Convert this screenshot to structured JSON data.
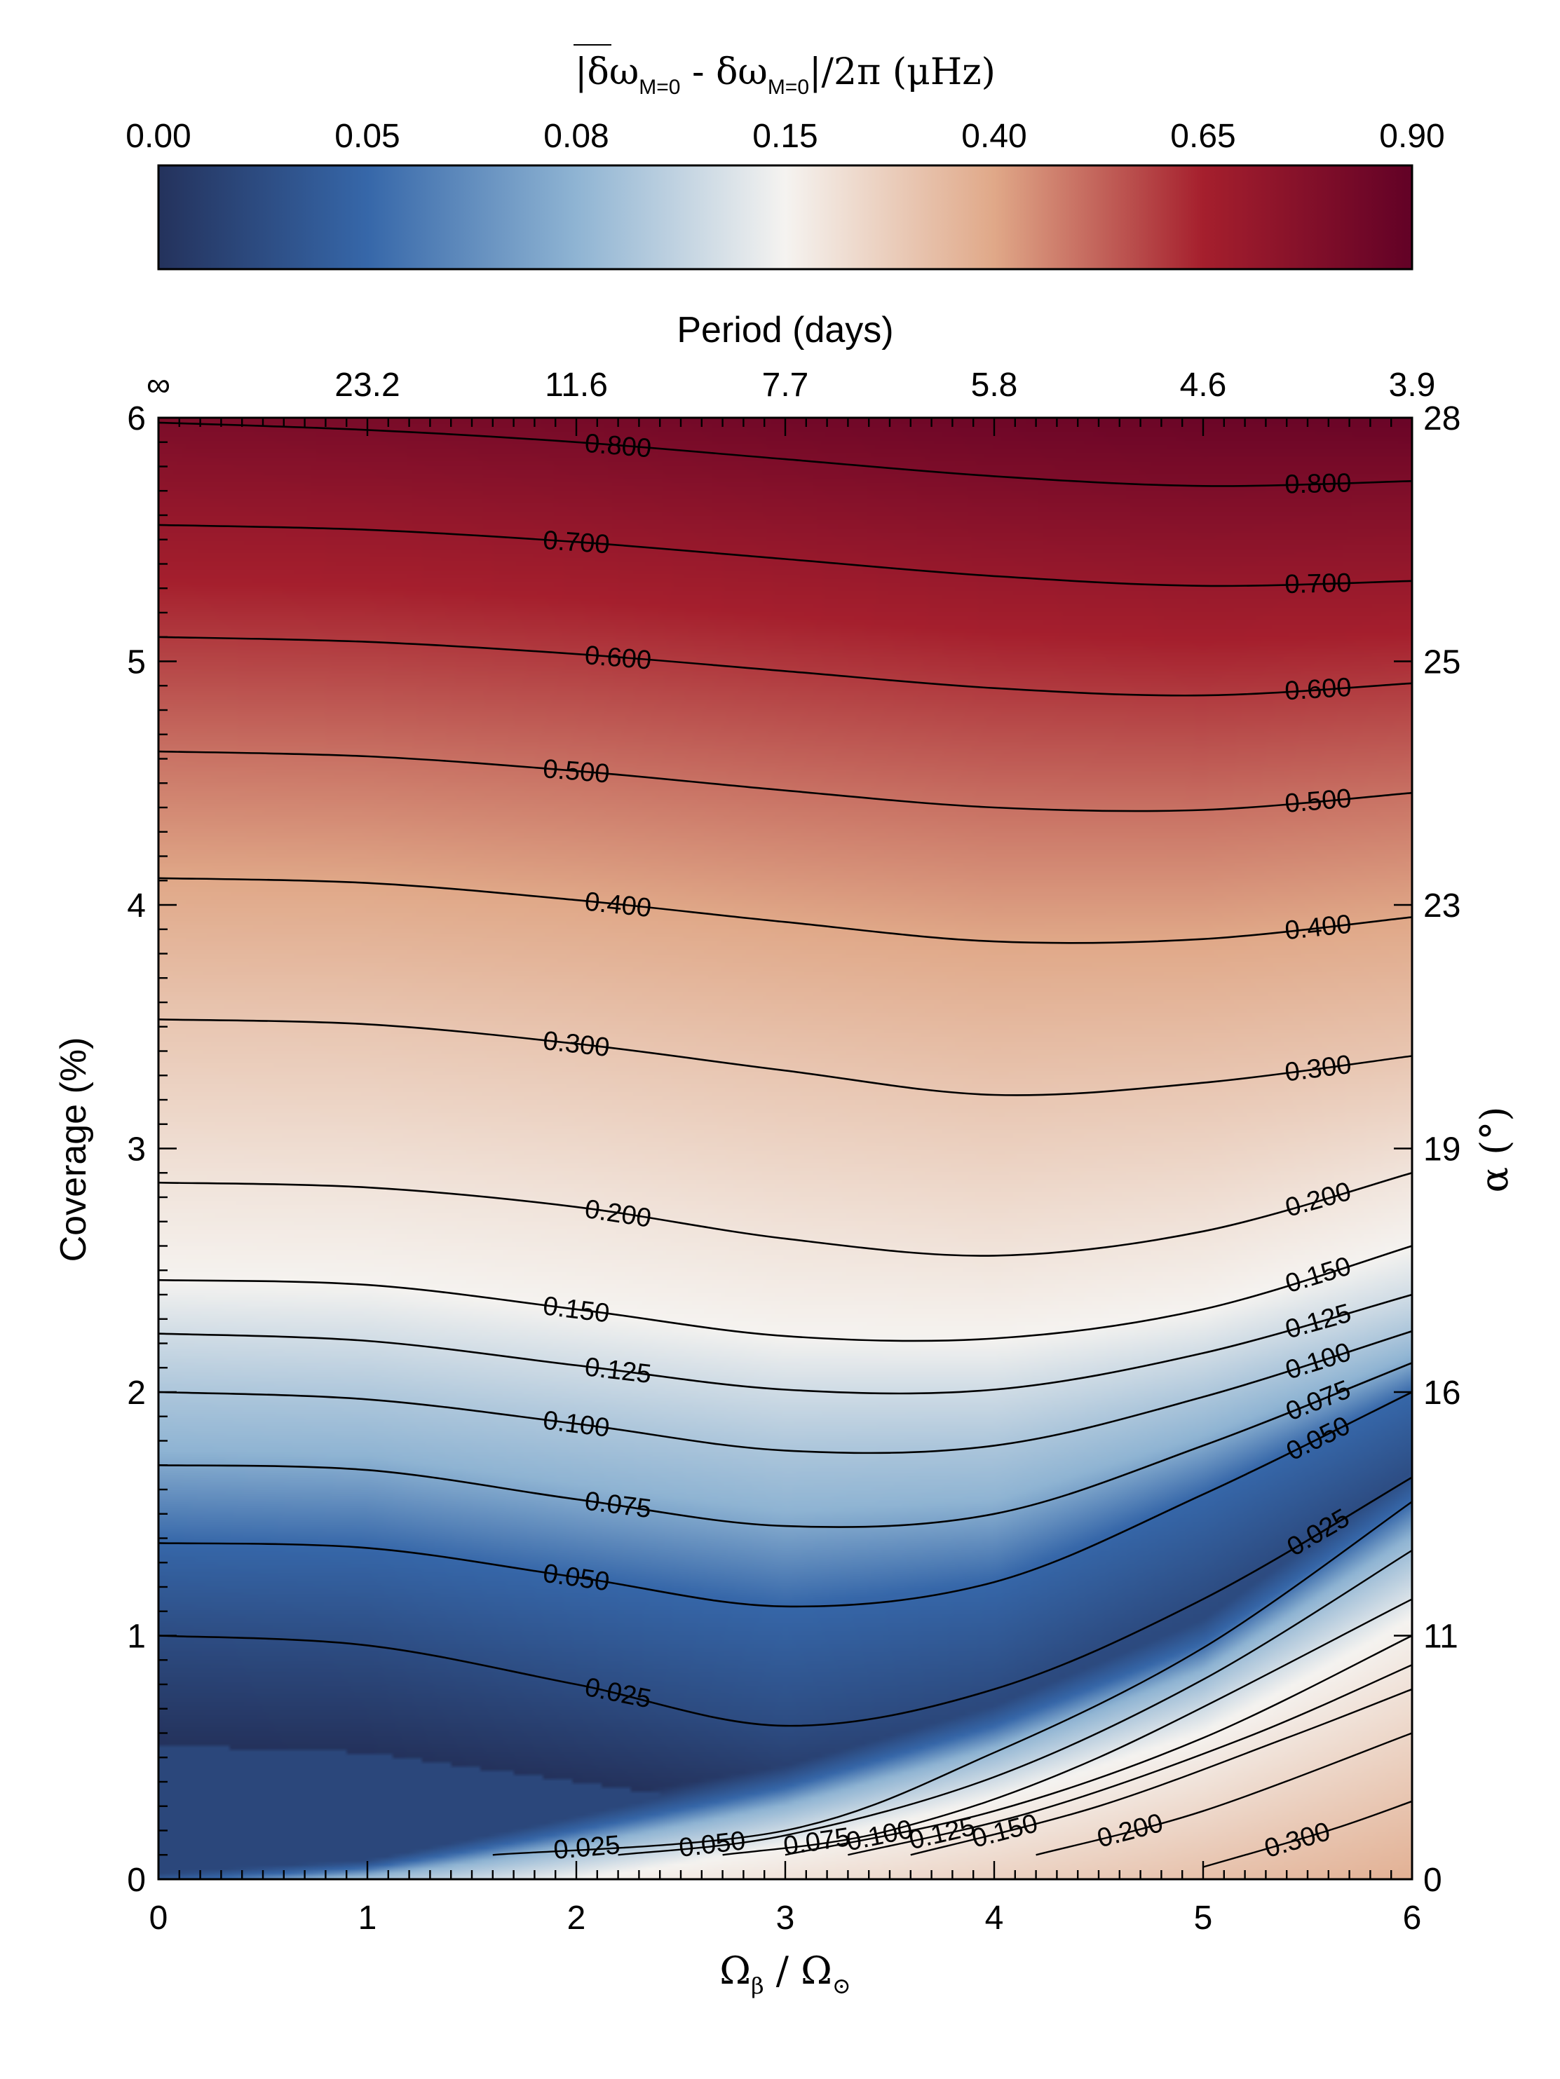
{
  "chart_data": {
    "type": "heatmap",
    "colorbar": {
      "title": "|δω̄M=0 - δωM=0|/2π (μHz)",
      "title_parts": [
        "|",
        "δω",
        "M=0",
        " - δω",
        "M=0",
        "|/2π (μHz)"
      ],
      "tick_labels": [
        "0.00",
        "0.05",
        "0.08",
        "0.15",
        "0.40",
        "0.65",
        "0.90"
      ],
      "range": [
        0.0,
        0.9
      ],
      "colors": [
        "#24325c",
        "#3667a9",
        "#8fb4d3",
        "#f5f3f0",
        "#e0a888",
        "#a51f2d",
        "#620126"
      ]
    },
    "x": {
      "label": "Ωβ / Ω⊙",
      "label_parts": [
        "Ω",
        "β",
        " / Ω",
        "⊙"
      ],
      "range": [
        0,
        6
      ],
      "ticks": [
        "0",
        "1",
        "2",
        "3",
        "4",
        "5",
        "6"
      ]
    },
    "x_top": {
      "label": "Period (days)",
      "ticks": [
        "∞",
        "23.2",
        "11.6",
        "7.7",
        "5.8",
        "4.6",
        "3.9"
      ]
    },
    "y": {
      "label": "Coverage (%)",
      "range": [
        0,
        6
      ],
      "ticks": [
        "0",
        "1",
        "2",
        "3",
        "4",
        "5",
        "6"
      ]
    },
    "y_right": {
      "label": "α (°)",
      "ticks": [
        "0",
        "11",
        "16",
        "19",
        "23",
        "25",
        "28"
      ]
    },
    "contours": [
      {
        "level": 0.025,
        "label": "0.025",
        "points": [
          [
            0,
            1.0
          ],
          [
            1,
            0.96
          ],
          [
            2,
            0.8
          ],
          [
            3,
            0.63
          ],
          [
            4,
            0.78
          ],
          [
            5,
            1.15
          ],
          [
            6,
            1.65
          ]
        ]
      },
      {
        "level": 0.05,
        "label": "0.050",
        "points": [
          [
            0,
            1.38
          ],
          [
            1,
            1.36
          ],
          [
            2,
            1.24
          ],
          [
            3,
            1.12
          ],
          [
            4,
            1.22
          ],
          [
            5,
            1.58
          ],
          [
            6,
            2.0
          ]
        ]
      },
      {
        "level": 0.075,
        "label": "0.075",
        "points": [
          [
            0,
            1.7
          ],
          [
            1,
            1.68
          ],
          [
            2,
            1.56
          ],
          [
            3,
            1.45
          ],
          [
            4,
            1.5
          ],
          [
            5,
            1.78
          ],
          [
            6,
            2.12
          ]
        ]
      },
      {
        "level": 0.1,
        "label": "0.100",
        "points": [
          [
            0,
            2.0
          ],
          [
            1,
            1.97
          ],
          [
            2,
            1.87
          ],
          [
            3,
            1.76
          ],
          [
            4,
            1.78
          ],
          [
            5,
            1.98
          ],
          [
            6,
            2.25
          ]
        ]
      },
      {
        "level": 0.125,
        "label": "0.125",
        "points": [
          [
            0,
            2.24
          ],
          [
            1,
            2.21
          ],
          [
            2,
            2.11
          ],
          [
            3,
            2.01
          ],
          [
            4,
            2.01
          ],
          [
            5,
            2.16
          ],
          [
            6,
            2.4
          ]
        ]
      },
      {
        "level": 0.15,
        "label": "0.150",
        "points": [
          [
            0,
            2.46
          ],
          [
            1,
            2.44
          ],
          [
            2,
            2.34
          ],
          [
            3,
            2.23
          ],
          [
            4,
            2.22
          ],
          [
            5,
            2.34
          ],
          [
            6,
            2.6
          ]
        ]
      },
      {
        "level": 0.2,
        "label": "0.200",
        "points": [
          [
            0,
            2.86
          ],
          [
            1,
            2.84
          ],
          [
            2,
            2.76
          ],
          [
            3,
            2.63
          ],
          [
            4,
            2.56
          ],
          [
            5,
            2.66
          ],
          [
            6,
            2.9
          ]
        ]
      },
      {
        "level": 0.3,
        "label": "0.300",
        "points": [
          [
            0,
            3.53
          ],
          [
            1,
            3.51
          ],
          [
            2,
            3.43
          ],
          [
            3,
            3.32
          ],
          [
            4,
            3.22
          ],
          [
            5,
            3.27
          ],
          [
            6,
            3.38
          ]
        ]
      },
      {
        "level": 0.4,
        "label": "0.400",
        "points": [
          [
            0,
            4.11
          ],
          [
            1,
            4.09
          ],
          [
            2,
            4.02
          ],
          [
            3,
            3.93
          ],
          [
            4,
            3.85
          ],
          [
            5,
            3.86
          ],
          [
            6,
            3.95
          ]
        ]
      },
      {
        "level": 0.5,
        "label": "0.500",
        "points": [
          [
            0,
            4.63
          ],
          [
            1,
            4.61
          ],
          [
            2,
            4.55
          ],
          [
            3,
            4.47
          ],
          [
            4,
            4.4
          ],
          [
            5,
            4.39
          ],
          [
            6,
            4.46
          ]
        ]
      },
      {
        "level": 0.6,
        "label": "0.600",
        "points": [
          [
            0,
            5.1
          ],
          [
            1,
            5.08
          ],
          [
            2,
            5.03
          ],
          [
            3,
            4.96
          ],
          [
            4,
            4.89
          ],
          [
            5,
            4.86
          ],
          [
            6,
            4.91
          ]
        ]
      },
      {
        "level": 0.7,
        "label": "0.700",
        "points": [
          [
            0,
            5.56
          ],
          [
            1,
            5.54
          ],
          [
            2,
            5.49
          ],
          [
            3,
            5.42
          ],
          [
            4,
            5.35
          ],
          [
            5,
            5.31
          ],
          [
            6,
            5.33
          ]
        ]
      },
      {
        "level": 0.8,
        "label": "0.800",
        "points": [
          [
            0,
            5.98
          ],
          [
            1,
            5.95
          ],
          [
            2,
            5.9
          ],
          [
            3,
            5.83
          ],
          [
            4,
            5.76
          ],
          [
            5,
            5.72
          ],
          [
            6,
            5.74
          ]
        ]
      }
    ],
    "ridge_contours": [
      {
        "level": 0.025,
        "label": "0.025",
        "points": [
          [
            1.6,
            0.1
          ],
          [
            3,
            0.2
          ],
          [
            4,
            0.52
          ],
          [
            5,
            0.95
          ],
          [
            6,
            1.55
          ]
        ]
      },
      {
        "level": 0.05,
        "label": "0.050",
        "points": [
          [
            2.2,
            0.1
          ],
          [
            3,
            0.18
          ],
          [
            4,
            0.42
          ],
          [
            5,
            0.82
          ],
          [
            6,
            1.35
          ]
        ]
      },
      {
        "level": 0.075,
        "label": "0.075",
        "points": [
          [
            2.7,
            0.1
          ],
          [
            3.5,
            0.2
          ],
          [
            4.5,
            0.5
          ],
          [
            6,
            1.15
          ]
        ]
      },
      {
        "level": 0.1,
        "label": "0.100",
        "points": [
          [
            3.0,
            0.1
          ],
          [
            4,
            0.28
          ],
          [
            5,
            0.58
          ],
          [
            6,
            1.0
          ]
        ]
      },
      {
        "level": 0.125,
        "label": "0.125",
        "points": [
          [
            3.3,
            0.1
          ],
          [
            4.2,
            0.28
          ],
          [
            5.2,
            0.58
          ],
          [
            6,
            0.88
          ]
        ]
      },
      {
        "level": 0.15,
        "label": "0.150",
        "points": [
          [
            3.6,
            0.1
          ],
          [
            4.5,
            0.3
          ],
          [
            5.4,
            0.58
          ],
          [
            6,
            0.78
          ]
        ]
      },
      {
        "level": 0.2,
        "label": "0.200",
        "points": [
          [
            4.2,
            0.1
          ],
          [
            5,
            0.28
          ],
          [
            6,
            0.6
          ]
        ]
      },
      {
        "level": 0.3,
        "label": "0.300",
        "points": [
          [
            5.0,
            0.05
          ],
          [
            5.6,
            0.2
          ],
          [
            6,
            0.32
          ]
        ]
      }
    ]
  }
}
